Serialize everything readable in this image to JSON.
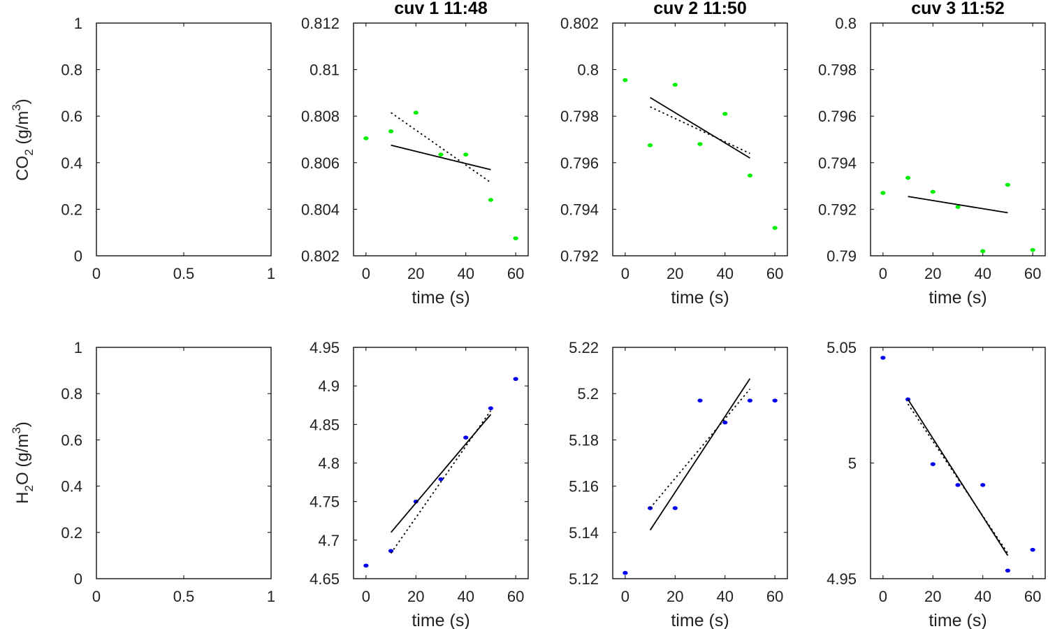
{
  "figure": {
    "row_labels": [
      {
        "main": "CO",
        "sub": "2",
        "unit_open": " (g/m",
        "unit_sup": "3",
        "unit_close": ")"
      },
      {
        "main": "H",
        "sub": "2",
        "main2": "O",
        "unit_open": " (g/m",
        "unit_sup": "3",
        "unit_close": ")"
      }
    ]
  },
  "colors": {
    "co2_points": "#00ee00",
    "h2o_points": "#0000ee",
    "fit_lines": "#000000",
    "axes": "#000000"
  },
  "chart_data": [
    {
      "type": "line",
      "title": "",
      "xlabel": "",
      "ylabel": "CO2 (g/m 3)",
      "xlim": [
        0,
        1
      ],
      "ylim": [
        0,
        1
      ],
      "xticks": [
        "0",
        "0.5",
        "1"
      ],
      "xtick_values": [
        0,
        0.5,
        1
      ],
      "yticks": [
        "0",
        "0.2",
        "0.4",
        "0.6",
        "0.8",
        "1"
      ],
      "ytick_values": [
        0,
        0.2,
        0.4,
        0.6,
        0.8,
        1
      ],
      "series": []
    },
    {
      "type": "scatter",
      "title": "cuv 1 11:48",
      "xlabel": "time (s)",
      "ylabel": "",
      "xlim": [
        -5,
        65
      ],
      "ylim": [
        0.802,
        0.812
      ],
      "xticks": [
        "0",
        "20",
        "40",
        "60"
      ],
      "xtick_values": [
        0,
        20,
        40,
        60
      ],
      "yticks": [
        "0.802",
        "0.804",
        "0.806",
        "0.808",
        "0.81",
        "0.812"
      ],
      "ytick_values": [
        0.802,
        0.804,
        0.806,
        0.808,
        0.81,
        0.812
      ],
      "series": [
        {
          "kind": "points",
          "color": "#00ee00",
          "x": [
            0,
            10,
            20,
            30,
            40,
            50,
            60
          ],
          "y": [
            0.80705,
            0.80735,
            0.80815,
            0.80635,
            0.80635,
            0.8044,
            0.80275
          ]
        },
        {
          "kind": "solid",
          "x": [
            10,
            50
          ],
          "y": [
            0.80675,
            0.8057
          ]
        },
        {
          "kind": "dotted",
          "x": [
            10,
            30,
            50
          ],
          "y": [
            0.80815,
            0.80665,
            0.80515
          ]
        }
      ]
    },
    {
      "type": "scatter",
      "title": "cuv 2 11:50",
      "xlabel": "time (s)",
      "ylabel": "",
      "xlim": [
        -5,
        65
      ],
      "ylim": [
        0.792,
        0.802
      ],
      "xticks": [
        "0",
        "20",
        "40",
        "60"
      ],
      "xtick_values": [
        0,
        20,
        40,
        60
      ],
      "yticks": [
        "0.792",
        "0.794",
        "0.796",
        "0.798",
        "0.8",
        "0.802"
      ],
      "ytick_values": [
        0.792,
        0.794,
        0.796,
        0.798,
        0.8,
        0.802
      ],
      "series": [
        {
          "kind": "points",
          "color": "#00ee00",
          "x": [
            0,
            10,
            20,
            30,
            40,
            50,
            60
          ],
          "y": [
            0.79955,
            0.79675,
            0.79935,
            0.7968,
            0.7981,
            0.79545,
            0.7932
          ]
        },
        {
          "kind": "solid",
          "x": [
            10,
            50
          ],
          "y": [
            0.7988,
            0.7962
          ]
        },
        {
          "kind": "dotted",
          "x": [
            10,
            50
          ],
          "y": [
            0.7984,
            0.7964
          ]
        }
      ]
    },
    {
      "type": "scatter",
      "title": "cuv 3 11:52",
      "xlabel": "time (s)",
      "ylabel": "",
      "xlim": [
        -5,
        65
      ],
      "ylim": [
        0.79,
        0.8
      ],
      "xticks": [
        "0",
        "20",
        "40",
        "60"
      ],
      "xtick_values": [
        0,
        20,
        40,
        60
      ],
      "yticks": [
        "0.79",
        "0.792",
        "0.794",
        "0.796",
        "0.798",
        "0.8"
      ],
      "ytick_values": [
        0.79,
        0.792,
        0.794,
        0.796,
        0.798,
        0.8
      ],
      "series": [
        {
          "kind": "points",
          "color": "#00ee00",
          "x": [
            0,
            10,
            20,
            30,
            40,
            50,
            60
          ],
          "y": [
            0.7927,
            0.79335,
            0.79275,
            0.7921,
            0.7902,
            0.79305,
            0.79025
          ]
        },
        {
          "kind": "solid",
          "x": [
            10,
            50
          ],
          "y": [
            0.79255,
            0.79185
          ]
        }
      ]
    },
    {
      "type": "line",
      "title": "",
      "xlabel": "",
      "ylabel": "H2O (g/m 3)",
      "xlim": [
        0,
        1
      ],
      "ylim": [
        0,
        1
      ],
      "xticks": [
        "0",
        "0.5",
        "1"
      ],
      "xtick_values": [
        0,
        0.5,
        1
      ],
      "yticks": [
        "0",
        "0.2",
        "0.4",
        "0.6",
        "0.8",
        "1"
      ],
      "ytick_values": [
        0,
        0.2,
        0.4,
        0.6,
        0.8,
        1
      ],
      "series": []
    },
    {
      "type": "scatter",
      "title": "",
      "xlabel": "time (s)",
      "ylabel": "",
      "xlim": [
        -5,
        65
      ],
      "ylim": [
        4.65,
        4.95
      ],
      "xticks": [
        "0",
        "20",
        "40",
        "60"
      ],
      "xtick_values": [
        0,
        20,
        40,
        60
      ],
      "yticks": [
        "4.65",
        "4.7",
        "4.75",
        "4.8",
        "4.85",
        "4.9",
        "4.95"
      ],
      "ytick_values": [
        4.65,
        4.7,
        4.75,
        4.8,
        4.85,
        4.9,
        4.95
      ],
      "series": [
        {
          "kind": "points",
          "color": "#0000ee",
          "x": [
            0,
            10,
            20,
            30,
            40,
            50,
            60
          ],
          "y": [
            4.667,
            4.686,
            4.75,
            4.779,
            4.833,
            4.871,
            4.909
          ]
        },
        {
          "kind": "solid",
          "x": [
            10,
            50
          ],
          "y": [
            4.71,
            4.863
          ]
        },
        {
          "kind": "dotted",
          "x": [
            10,
            50
          ],
          "y": [
            4.683,
            4.868
          ]
        }
      ]
    },
    {
      "type": "scatter",
      "title": "",
      "xlabel": "time (s)",
      "ylabel": "",
      "xlim": [
        -5,
        65
      ],
      "ylim": [
        5.12,
        5.22
      ],
      "xticks": [
        "0",
        "20",
        "40",
        "60"
      ],
      "xtick_values": [
        0,
        20,
        40,
        60
      ],
      "yticks": [
        "5.12",
        "5.14",
        "5.16",
        "5.18",
        "5.2",
        "5.22"
      ],
      "ytick_values": [
        5.12,
        5.14,
        5.16,
        5.18,
        5.2,
        5.22
      ],
      "series": [
        {
          "kind": "points",
          "color": "#0000ee",
          "x": [
            0,
            10,
            20,
            30,
            40,
            50,
            60
          ],
          "y": [
            5.1225,
            5.1505,
            5.1505,
            5.197,
            5.1875,
            5.197,
            5.197
          ]
        },
        {
          "kind": "solid",
          "x": [
            10,
            50
          ],
          "y": [
            5.141,
            5.2065
          ]
        },
        {
          "kind": "dotted",
          "x": [
            10,
            50
          ],
          "y": [
            5.1505,
            5.202
          ]
        }
      ]
    },
    {
      "type": "scatter",
      "title": "",
      "xlabel": "time (s)",
      "ylabel": "",
      "xlim": [
        -5,
        65
      ],
      "ylim": [
        4.95,
        5.05
      ],
      "xticks": [
        "0",
        "20",
        "40",
        "60"
      ],
      "xtick_values": [
        0,
        20,
        40,
        60
      ],
      "yticks": [
        "4.95",
        "5",
        "5.05"
      ],
      "ytick_values": [
        4.95,
        5,
        5.05
      ],
      "series": [
        {
          "kind": "points",
          "color": "#0000ee",
          "x": [
            0,
            10,
            20,
            30,
            40,
            50,
            60
          ],
          "y": [
            5.0455,
            5.0275,
            4.9995,
            4.9905,
            4.9905,
            4.9535,
            4.9625
          ]
        },
        {
          "kind": "solid",
          "x": [
            10,
            50
          ],
          "y": [
            5.0275,
            4.96
          ]
        },
        {
          "kind": "dotted",
          "x": [
            10,
            50
          ],
          "y": [
            5.0255,
            4.961
          ]
        }
      ]
    }
  ]
}
